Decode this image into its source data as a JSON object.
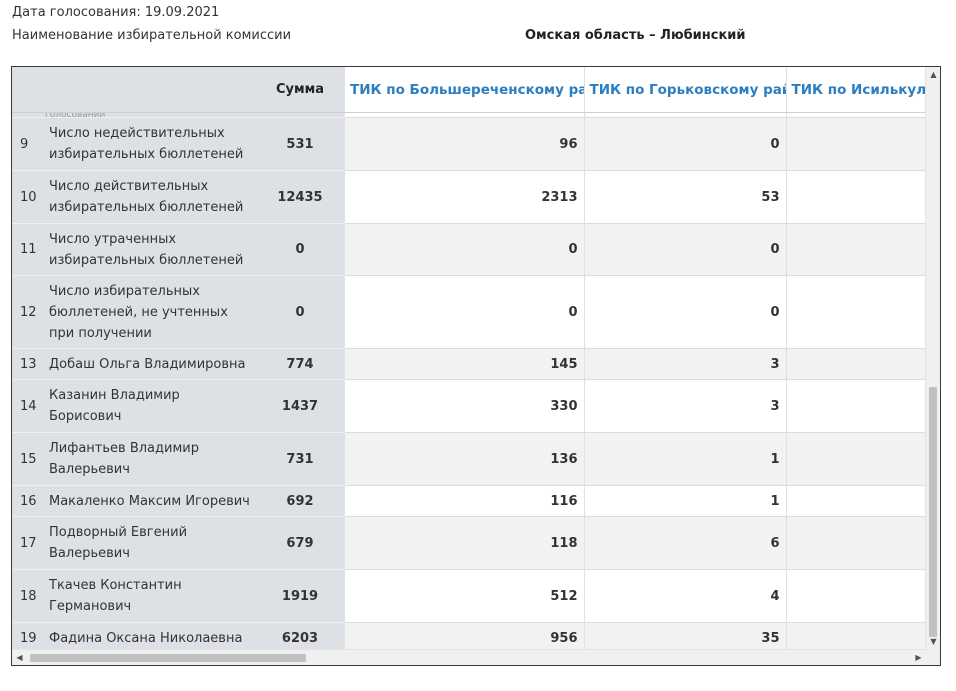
{
  "header": {
    "date_line": "Дата голосования:  19.09.2021",
    "commission_line": "Наименование избирательной комиссии",
    "region_title": "Омская область – Любинский"
  },
  "table": {
    "columns": {
      "sum": "Сумма",
      "tik": [
        "ТИК по Большереченскому району",
        "ТИК по Горьковскому району",
        "ТИК по Исилькульскому району"
      ]
    },
    "cut_row": {
      "label": "голосовании"
    },
    "rows": [
      {
        "num": "9",
        "label": "Число недействительных избирательных бюллетеней",
        "sum": "531",
        "v1": "96",
        "v2": "0",
        "v3": ""
      },
      {
        "num": "10",
        "label": "Число действительных избирательных бюллетеней",
        "sum": "12435",
        "v1": "2313",
        "v2": "53",
        "v3": ""
      },
      {
        "num": "11",
        "label": "Число утраченных избирательных бюллетеней",
        "sum": "0",
        "v1": "0",
        "v2": "0",
        "v3": ""
      },
      {
        "num": "12",
        "label": "Число избирательных бюллетеней, не учтенных при получении",
        "sum": "0",
        "v1": "0",
        "v2": "0",
        "v3": ""
      },
      {
        "num": "13",
        "label": "Добаш Ольга Владимировна",
        "sum": "774",
        "v1": "145",
        "v2": "3",
        "v3": ""
      },
      {
        "num": "14",
        "label": "Казанин Владимир Борисович",
        "sum": "1437",
        "v1": "330",
        "v2": "3",
        "v3": ""
      },
      {
        "num": "15",
        "label": "Лифантьев Владимир Валерьевич",
        "sum": "731",
        "v1": "136",
        "v2": "1",
        "v3": ""
      },
      {
        "num": "16",
        "label": "Макаленко Максим Игоревич",
        "sum": "692",
        "v1": "116",
        "v2": "1",
        "v3": ""
      },
      {
        "num": "17",
        "label": "Подворный Евгений Валерьевич",
        "sum": "679",
        "v1": "118",
        "v2": "6",
        "v3": ""
      },
      {
        "num": "18",
        "label": "Ткачев Константин Германович",
        "sum": "1919",
        "v1": "512",
        "v2": "4",
        "v3": ""
      },
      {
        "num": "19",
        "label": "Фадина Оксана Николаевна",
        "sum": "6203",
        "v1": "956",
        "v2": "35",
        "v3": ""
      }
    ]
  },
  "scrollbars": {
    "up_glyph": "▲",
    "down_glyph": "▼",
    "left_glyph": "◀",
    "right_glyph": "▶"
  }
}
